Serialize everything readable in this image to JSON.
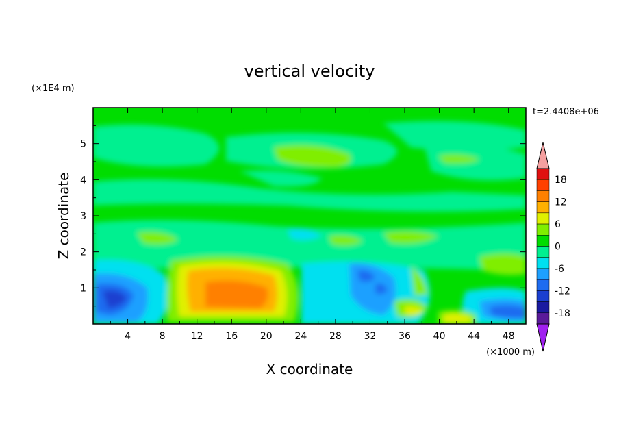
{
  "chart_data": {
    "type": "heatmap",
    "title": "vertical velocity",
    "xlabel": "X coordinate",
    "ylabel": "Z coordinate",
    "x_unit": "(×1000 m)",
    "y_unit": "(×1E4 m)",
    "time_label": "t=2.4408e+06",
    "xlim": [
      0,
      50
    ],
    "ylim": [
      0,
      6
    ],
    "x_ticks": [
      4,
      8,
      12,
      16,
      20,
      24,
      28,
      32,
      36,
      40,
      44,
      48
    ],
    "y_ticks": [
      1,
      2,
      3,
      4,
      5
    ],
    "colorbar": {
      "levels": [
        -21,
        -18,
        -15,
        -12,
        -9,
        -6,
        -3,
        0,
        3,
        6,
        9,
        12,
        15,
        18,
        21
      ],
      "labels": [
        "18",
        "12",
        "6",
        "0",
        "-6",
        "-12",
        "-18"
      ],
      "colors": [
        "#a020f0",
        "#5a1a9a",
        "#1a1aa0",
        "#1a3fd0",
        "#1e6cf0",
        "#1ea0ff",
        "#00e0f0",
        "#00f090",
        "#00dd00",
        "#80ee00",
        "#e0f000",
        "#ffb000",
        "#ff8000",
        "#ff4000",
        "#e01010",
        "#f5a0a0"
      ]
    },
    "features": [
      {
        "x": 16.5,
        "z": 0.8,
        "value": 14
      },
      {
        "x": 3,
        "z": 0.7,
        "value": -11
      },
      {
        "x": 31,
        "z": 1.3,
        "value": -10
      },
      {
        "x": 33,
        "z": 1.0,
        "value": -9
      },
      {
        "x": 45.5,
        "z": 0.4,
        "value": -8
      },
      {
        "x": 42,
        "z": 0.2,
        "value": 8
      },
      {
        "x": 25,
        "z": 4.7,
        "value": 4
      }
    ]
  }
}
